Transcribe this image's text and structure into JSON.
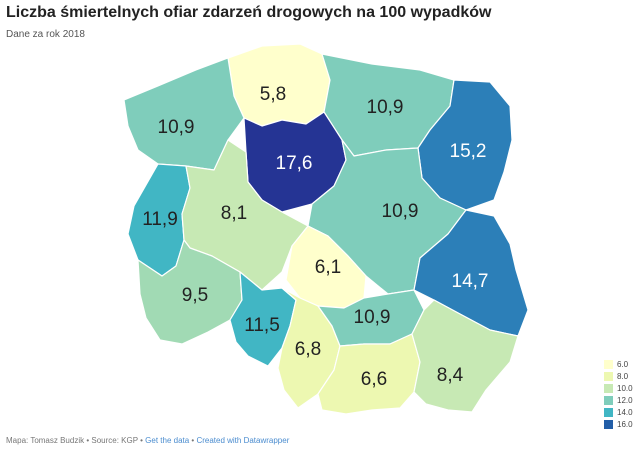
{
  "header": {
    "title": "Liczba śmiertelnych ofiar zdarzeń drogowych na 100 wypadków",
    "subtitle": "Dane za rok 2018"
  },
  "regions": [
    {
      "id": "pomorskie",
      "value": "5,8",
      "color": "#ffffcc",
      "text_color": "#222222"
    },
    {
      "id": "zachodniopomorskie",
      "value": "10,9",
      "color": "#7fcdbb",
      "text_color": "#222222"
    },
    {
      "id": "warminsko-mazurskie",
      "value": "10,9",
      "color": "#7fcdbb",
      "text_color": "#222222"
    },
    {
      "id": "podlaskie",
      "value": "15,2",
      "color": "#2c7fb8",
      "text_color": "#ffffff"
    },
    {
      "id": "kujawsko-pomorskie",
      "value": "17,6",
      "color": "#253494",
      "text_color": "#ffffff"
    },
    {
      "id": "lubuskie",
      "value": "11,9",
      "color": "#41b6c4",
      "text_color": "#222222"
    },
    {
      "id": "wielkopolskie",
      "value": "8,1",
      "color": "#c7e9b4",
      "text_color": "#222222"
    },
    {
      "id": "mazowieckie",
      "value": "10,9",
      "color": "#7fcdbb",
      "text_color": "#222222"
    },
    {
      "id": "lodzkie",
      "value": "6,1",
      "color": "#ffffcc",
      "text_color": "#222222"
    },
    {
      "id": "lubelskie",
      "value": "14,7",
      "color": "#2c7fb8",
      "text_color": "#ffffff"
    },
    {
      "id": "dolnoslaskie",
      "value": "9,5",
      "color": "#a1dab4",
      "text_color": "#222222"
    },
    {
      "id": "opolskie",
      "value": "11,5",
      "color": "#41b6c4",
      "text_color": "#222222"
    },
    {
      "id": "slaskie",
      "value": "6,8",
      "color": "#edf8b1",
      "text_color": "#222222"
    },
    {
      "id": "swietokrzyskie",
      "value": "10,9",
      "color": "#7fcdbb",
      "text_color": "#222222"
    },
    {
      "id": "malopolskie",
      "value": "6,6",
      "color": "#edf8b1",
      "text_color": "#222222"
    },
    {
      "id": "podkarpackie",
      "value": "8,4",
      "color": "#c7e9b4",
      "text_color": "#222222"
    }
  ],
  "legend": [
    {
      "label": "6.0",
      "color": "#ffffcc"
    },
    {
      "label": "8.0",
      "color": "#edf8b1"
    },
    {
      "label": "10.0",
      "color": "#c7e9b4"
    },
    {
      "label": "12.0",
      "color": "#7fcdbb"
    },
    {
      "label": "14.0",
      "color": "#41b6c4"
    },
    {
      "label": "16.0",
      "color": "#225ea8"
    }
  ],
  "footer": {
    "credits": "Mapa: Tomasz Budzik • Source: KGP • ",
    "get_data": "Get the data",
    "separator": " • ",
    "created_with": "Created with Datawrapper"
  }
}
